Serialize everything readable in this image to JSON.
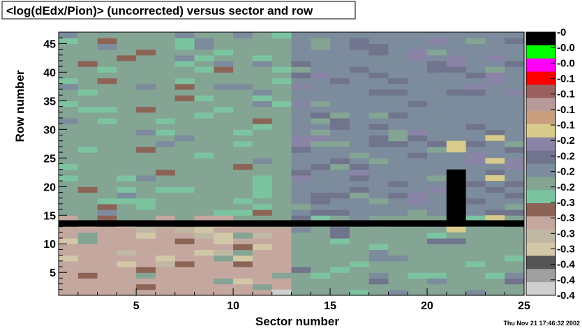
{
  "title": "<log(dEdx/Pion)> (uncorrected) versus sector and row",
  "timestamp": "Thu Nov 21 17:46:32 2002",
  "chart_data": {
    "type": "heatmap",
    "title": "<log(dEdx/Pion)> (uncorrected) versus sector and row",
    "xlabel": "Sector number",
    "ylabel": "Row number",
    "xlim": [
      1,
      25
    ],
    "ylim": [
      1,
      46
    ],
    "xticks": [
      5,
      10,
      15,
      20,
      25
    ],
    "yticks": [
      5,
      10,
      15,
      20,
      25,
      30,
      35,
      40,
      45
    ],
    "colorbar_labels": [
      "-0",
      "-0.0",
      "-0.0",
      "-0.1",
      "-0.1",
      "-0.1",
      "-0.1",
      "-0.2",
      "-0.2",
      "-0.2",
      "-0.2",
      "-0.3",
      "-0.3",
      "-0.3",
      "-0.3",
      "-0.4",
      "-0.4",
      "-0.4"
    ],
    "palette": [
      "#000000",
      "#00ff00",
      "#ff00ff",
      "#ff0000",
      "#9a6060",
      "#b89a9a",
      "#c8a080",
      "#d8cc8c",
      "#8a84a6",
      "#70748c",
      "#7c8c9c",
      "#84a494",
      "#7cc4a0",
      "#8c6455",
      "#c4a8a0",
      "#c0b8a4",
      "#d2c8a8",
      "#555555",
      "#a0a0a0",
      "#cfcfcf"
    ],
    "sector_bands": [
      {
        "sectors": [
          1,
          12
        ],
        "rows": [
          15,
          46
        ],
        "level": "-0.25",
        "color": "#84a494"
      },
      {
        "sectors": [
          1,
          12
        ],
        "rows": [
          1,
          12
        ],
        "level": "-0.32",
        "color": "#c4a8a0"
      },
      {
        "sectors": [
          13,
          24
        ],
        "rows": [
          15,
          46
        ],
        "level": "-0.20",
        "color": "#7c8c9c"
      },
      {
        "sectors": [
          13,
          24
        ],
        "rows": [
          1,
          12
        ],
        "level": "-0.25",
        "color": "#84a494"
      }
    ],
    "special_cells": [
      {
        "sector": 21,
        "rows": [
          14,
          22
        ],
        "color": "#000000"
      },
      {
        "sector": 21,
        "rows": [
          26,
          27
        ],
        "color": "#d8cc8c"
      },
      {
        "sector": 23,
        "rows": [
          28,
          28
        ],
        "color": "#d8cc8c"
      },
      {
        "sector": 23,
        "rows": [
          24,
          24
        ],
        "color": "#d8cc8c"
      },
      {
        "sector": 23,
        "rows": [
          21,
          21
        ],
        "color": "#d8cc8c"
      },
      {
        "sector": 23,
        "rows": [
          14,
          14
        ],
        "color": "#d8cc8c"
      },
      {
        "sector": 21,
        "rows": [
          12,
          12
        ],
        "color": "#d8cc8c"
      },
      {
        "sector": 12,
        "rows": [
          1,
          1
        ],
        "color": "#cfcfcf"
      }
    ],
    "dead_rows": [
      13
    ],
    "dead_row_color": "#000000"
  }
}
